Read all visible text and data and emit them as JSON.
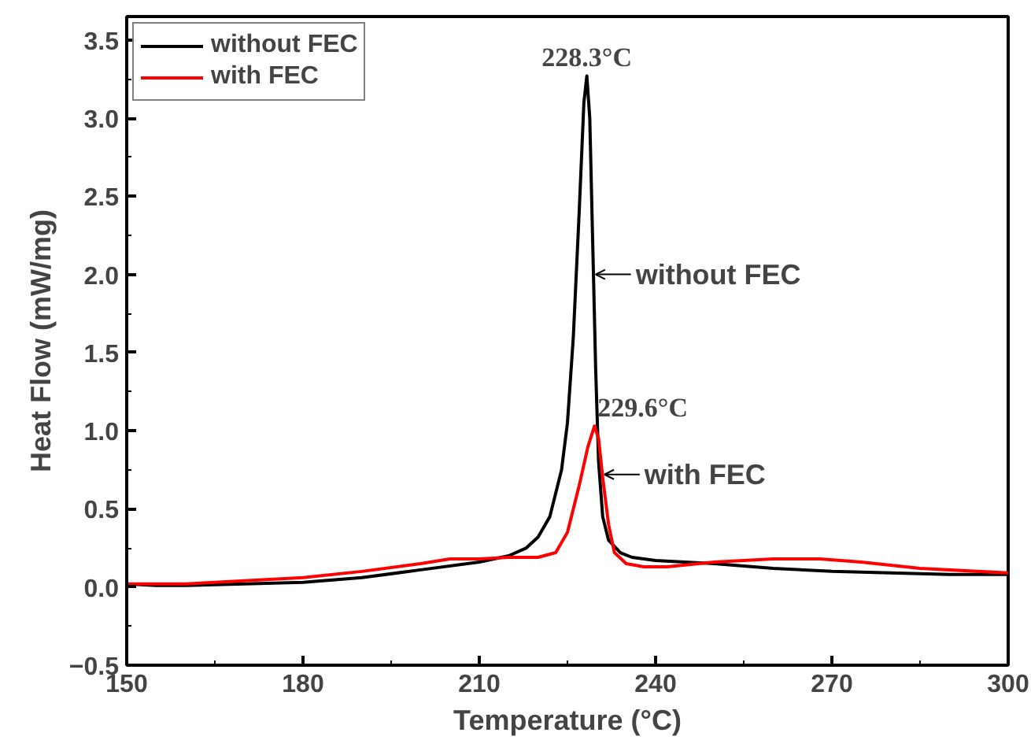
{
  "chart_data": {
    "type": "line",
    "xlabel": "Temperature (°C)",
    "ylabel": "Heat Flow (mW/mg)",
    "xlim": [
      150,
      300
    ],
    "xticks": [
      150,
      180,
      210,
      240,
      270,
      300
    ],
    "ylim": [
      -0.5,
      3.65
    ],
    "yticks": [
      -0.5,
      {
        "value": 0,
        "label": "0.0"
      },
      0.5,
      {
        "value": 1,
        "label": "1.0"
      },
      1.5,
      {
        "value": 2,
        "label": "2.0"
      },
      2.5,
      {
        "value": 3,
        "label": "3.0"
      },
      3.5
    ],
    "grid": false,
    "legend": "top left",
    "line_style": "solid",
    "marker": "none",
    "series": [
      {
        "name": "without FEC",
        "color": "#000000",
        "x": [
          150,
          155,
          160,
          170,
          180,
          190,
          200,
          210,
          215,
          218,
          220,
          222,
          224,
          225,
          226,
          227,
          227.8,
          228.3,
          228.8,
          229.3,
          229.8,
          230.3,
          231,
          232,
          234,
          236,
          240,
          250,
          260,
          270,
          280,
          290,
          300
        ],
        "values": [
          0.02,
          0.01,
          0.01,
          0.02,
          0.03,
          0.06,
          0.11,
          0.16,
          0.2,
          0.25,
          0.32,
          0.45,
          0.75,
          1.05,
          1.6,
          2.4,
          3.1,
          3.27,
          3.0,
          2.2,
          1.4,
          0.8,
          0.45,
          0.3,
          0.22,
          0.19,
          0.17,
          0.15,
          0.12,
          0.1,
          0.09,
          0.08,
          0.08
        ]
      },
      {
        "name": "with FEC",
        "color": "#ff0000",
        "x": [
          150,
          160,
          170,
          180,
          190,
          200,
          205,
          210,
          215,
          220,
          223,
          225,
          227,
          228.5,
          229.6,
          230.3,
          231,
          232,
          233,
          235,
          238,
          242,
          250,
          260,
          268,
          275,
          285,
          300
        ],
        "values": [
          0.02,
          0.02,
          0.04,
          0.06,
          0.1,
          0.15,
          0.18,
          0.18,
          0.19,
          0.19,
          0.22,
          0.35,
          0.65,
          0.9,
          1.03,
          0.95,
          0.7,
          0.4,
          0.22,
          0.15,
          0.13,
          0.13,
          0.16,
          0.18,
          0.18,
          0.16,
          0.12,
          0.09
        ]
      }
    ],
    "annotations": [
      {
        "text": "228.3°C",
        "x": 228.3,
        "y": 3.27
      },
      {
        "text": "229.6°C",
        "x": 229.6,
        "y": 1.03
      },
      {
        "text": "without FEC",
        "x": 229.8,
        "y": 2.0
      },
      {
        "text": "with FEC",
        "x": 231.3,
        "y": 0.72
      }
    ]
  }
}
